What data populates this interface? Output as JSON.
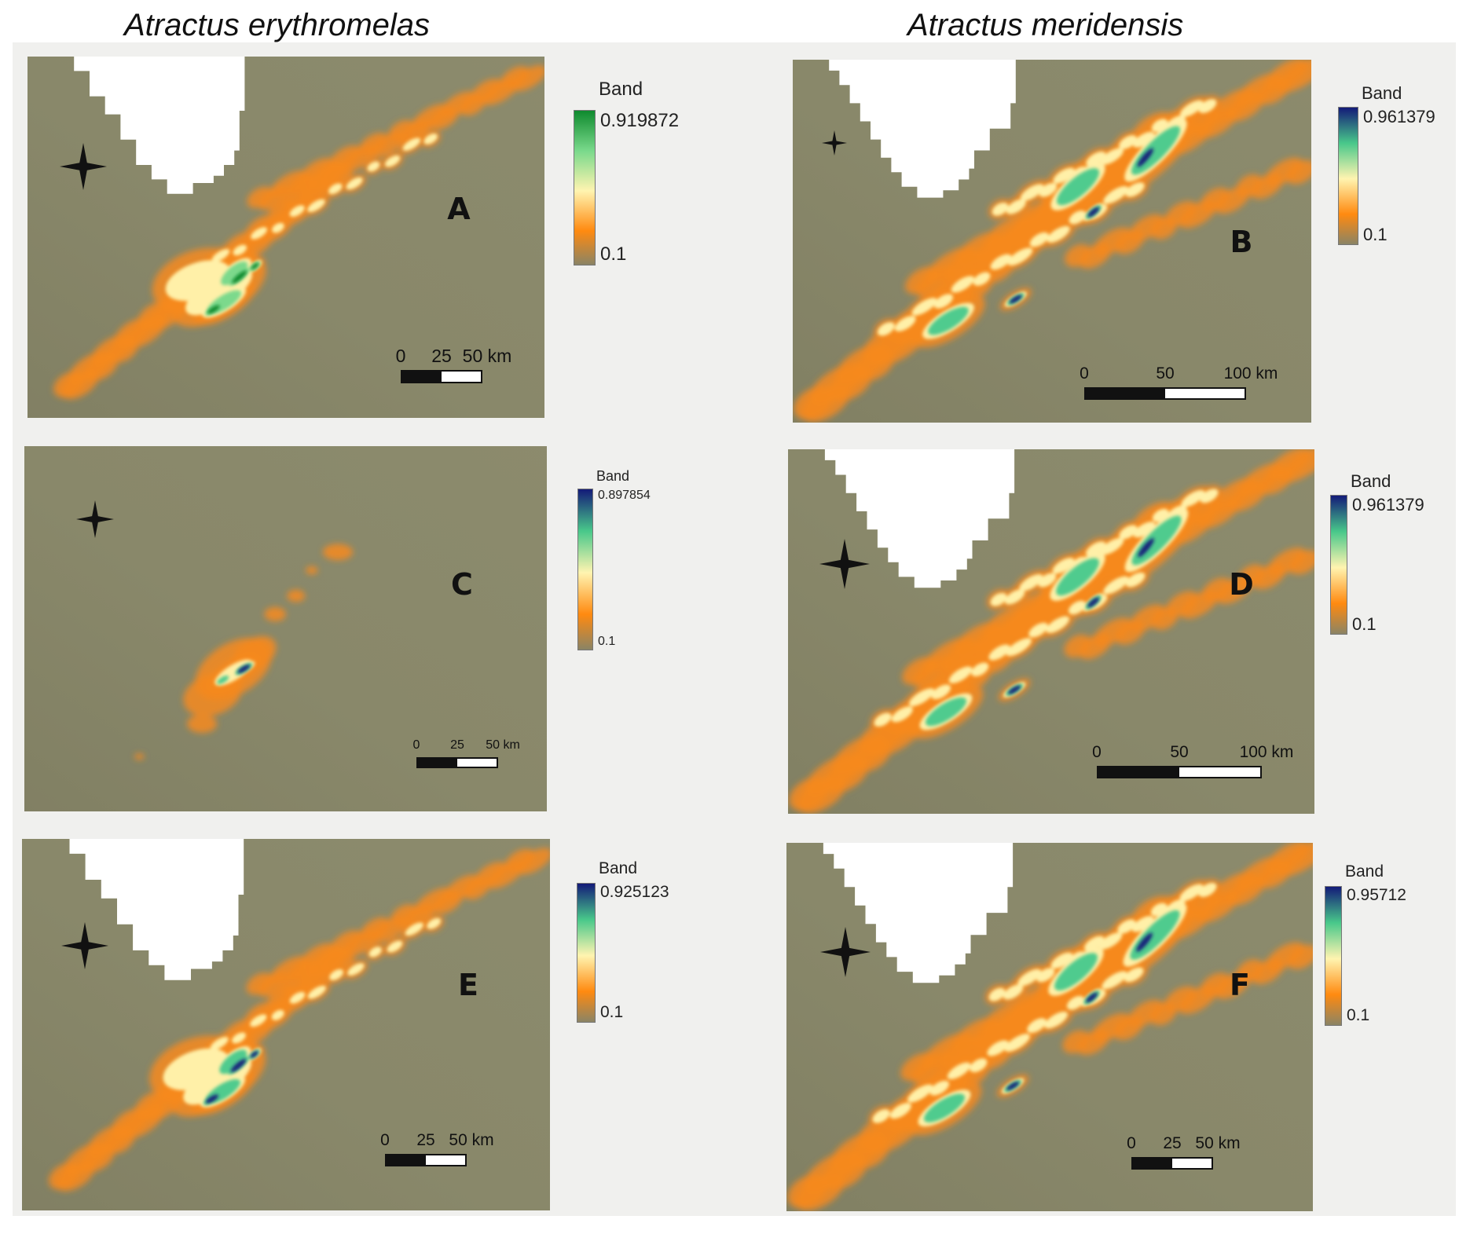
{
  "figure": {
    "titles": {
      "left": "Atractus erythromelas",
      "right": "Atractus meridensis"
    },
    "colors": {
      "background": "#8b8a6b",
      "no_data": "#ffffff",
      "ramp_green": [
        "#8a8465",
        "#ff8a10",
        "#fff4b0",
        "#79d98b",
        "#0f8a2e"
      ],
      "ramp_blue": [
        "#8a8465",
        "#ff8a10",
        "#fff4b0",
        "#48c88a",
        "#131a78"
      ]
    },
    "north_arrow_icon": "compass-star-icon",
    "panels": [
      {
        "id": "A",
        "label": "A",
        "species": "Atractus erythromelas",
        "legend": {
          "title": "Band",
          "max": "0.919872",
          "min": "0.1",
          "ramp": "green"
        },
        "scale": {
          "ticks": [
            "0",
            "25",
            "50 km"
          ]
        }
      },
      {
        "id": "B",
        "label": "B",
        "species": "Atractus meridensis",
        "legend": {
          "title": "Band",
          "max": "0.961379",
          "min": "0.1",
          "ramp": "blue"
        },
        "scale": {
          "ticks": [
            "0",
            "50",
            "100 km"
          ]
        }
      },
      {
        "id": "C",
        "label": "C",
        "species": "Atractus erythromelas",
        "legend": {
          "title": "Band",
          "max": "0.897854",
          "min": "0.1",
          "ramp": "blue"
        },
        "scale": {
          "ticks": [
            "0",
            "25",
            "50 km"
          ]
        }
      },
      {
        "id": "D",
        "label": "D",
        "species": "Atractus meridensis",
        "legend": {
          "title": "Band",
          "max": "0.961379",
          "min": "0.1",
          "ramp": "blue"
        },
        "scale": {
          "ticks": [
            "0",
            "50",
            "100 km"
          ]
        }
      },
      {
        "id": "E",
        "label": "E",
        "species": "Atractus erythromelas",
        "legend": {
          "title": "Band",
          "max": "0.925123",
          "min": "0.1",
          "ramp": "blue"
        },
        "scale": {
          "ticks": [
            "0",
            "25",
            "50 km"
          ]
        }
      },
      {
        "id": "F",
        "label": "F",
        "species": "Atractus meridensis",
        "legend": {
          "title": "Band",
          "max": "0.95712",
          "min": "0.1",
          "ramp": "blue"
        },
        "scale": {
          "ticks": [
            "0",
            "25",
            "50 km"
          ]
        }
      }
    ]
  }
}
